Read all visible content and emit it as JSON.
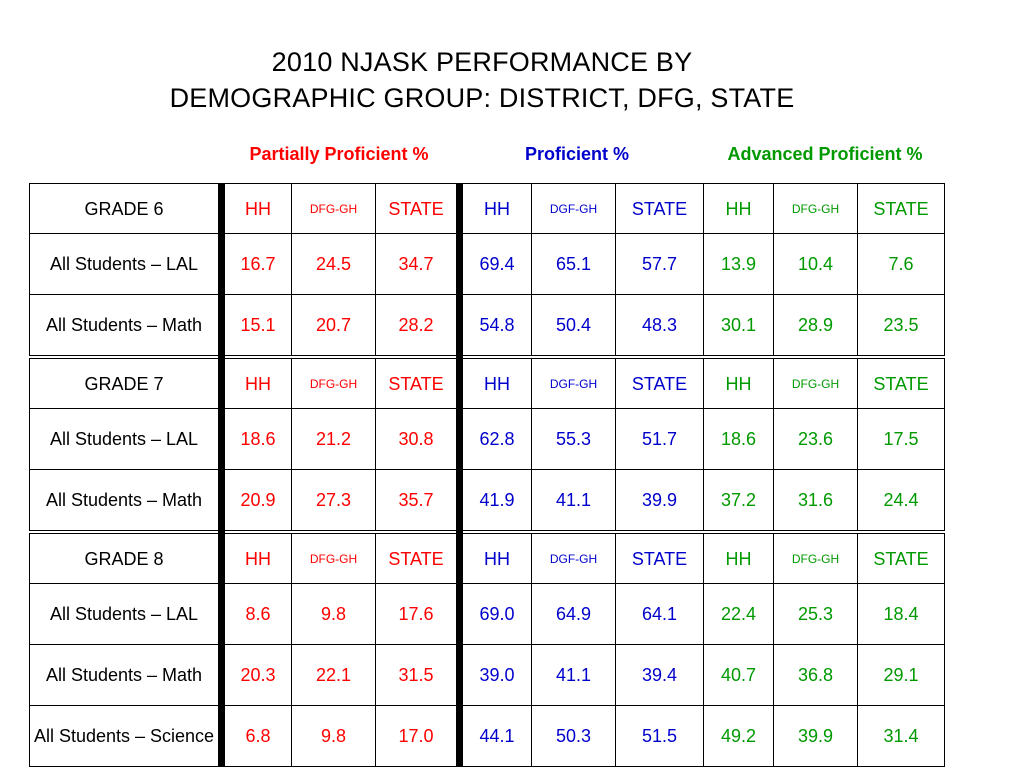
{
  "title": {
    "line1": "2010 NJASK PERFORMANCE BY",
    "line2": "DEMOGRAPHIC GROUP: DISTRICT, DFG, STATE"
  },
  "groups": {
    "partial": "Partially Proficient %",
    "proficient": "Proficient %",
    "advanced": "Advanced Proficient %"
  },
  "colors": {
    "partial": "#ff0000",
    "proficient": "#0000cc",
    "advanced": "#009900"
  },
  "sections": [
    {
      "header": [
        "GRADE 6",
        "HH",
        "DFG-GH",
        "STATE",
        "HH",
        "DGF-GH",
        "STATE",
        "HH",
        "DFG-GH",
        "STATE"
      ],
      "rows": [
        [
          "All Students – LAL",
          "16.7",
          "24.5",
          "34.7",
          "69.4",
          "65.1",
          "57.7",
          "13.9",
          "10.4",
          "7.6"
        ],
        [
          "All Students – Math",
          "15.1",
          "20.7",
          "28.2",
          "54.8",
          "50.4",
          "48.3",
          "30.1",
          "28.9",
          "23.5"
        ]
      ]
    },
    {
      "header": [
        "GRADE 7",
        "HH",
        "DFG-GH",
        "STATE",
        "HH",
        "DGF-GH",
        "STATE",
        "HH",
        "DFG-GH",
        "STATE"
      ],
      "rows": [
        [
          "All Students – LAL",
          "18.6",
          "21.2",
          "30.8",
          "62.8",
          "55.3",
          "51.7",
          "18.6",
          "23.6",
          "17.5"
        ],
        [
          "All Students – Math",
          "20.9",
          "27.3",
          "35.7",
          "41.9",
          "41.1",
          "39.9",
          "37.2",
          "31.6",
          "24.4"
        ]
      ]
    },
    {
      "header": [
        "GRADE 8",
        "HH",
        "DFG-GH",
        "STATE",
        "HH",
        "DGF-GH",
        "STATE",
        "HH",
        "DFG-GH",
        "STATE"
      ],
      "rows": [
        [
          "All Students – LAL",
          "8.6",
          "9.8",
          "17.6",
          "69.0",
          "64.9",
          "64.1",
          "22.4",
          "25.3",
          "18.4"
        ],
        [
          "All Students – Math",
          "20.3",
          "22.1",
          "31.5",
          "39.0",
          "41.1",
          "39.4",
          "40.7",
          "36.8",
          "29.1"
        ],
        [
          "All Students – Science",
          "6.8",
          "9.8",
          "17.0",
          "44.1",
          "50.3",
          "51.5",
          "49.2",
          "39.9",
          "31.4"
        ]
      ]
    }
  ]
}
